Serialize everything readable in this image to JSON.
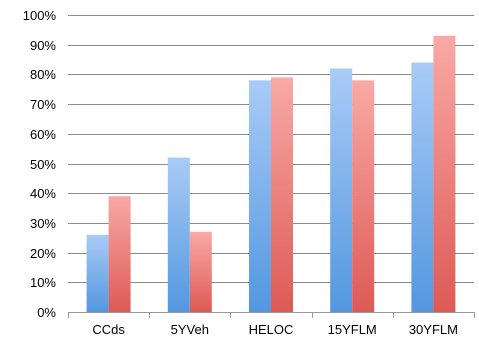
{
  "chart_data": {
    "type": "bar",
    "categories": [
      "CCds",
      "5YVeh",
      "HELOC",
      "15YFLM",
      "30YFLM"
    ],
    "series": [
      {
        "values": [
          0.26,
          0.52,
          0.78,
          0.82,
          0.84
        ],
        "color": "#5b9bd5"
      },
      {
        "values": [
          0.39,
          0.27,
          0.79,
          0.78,
          0.93
        ],
        "color": "#e0605a"
      }
    ],
    "y_ticks": [
      "0%",
      "10%",
      "20%",
      "30%",
      "40%",
      "50%",
      "60%",
      "70%",
      "80%",
      "90%",
      "100%"
    ],
    "ylim": [
      0,
      1
    ],
    "grid": true,
    "legend": "none",
    "title": "",
    "xlabel": "",
    "ylabel": ""
  }
}
